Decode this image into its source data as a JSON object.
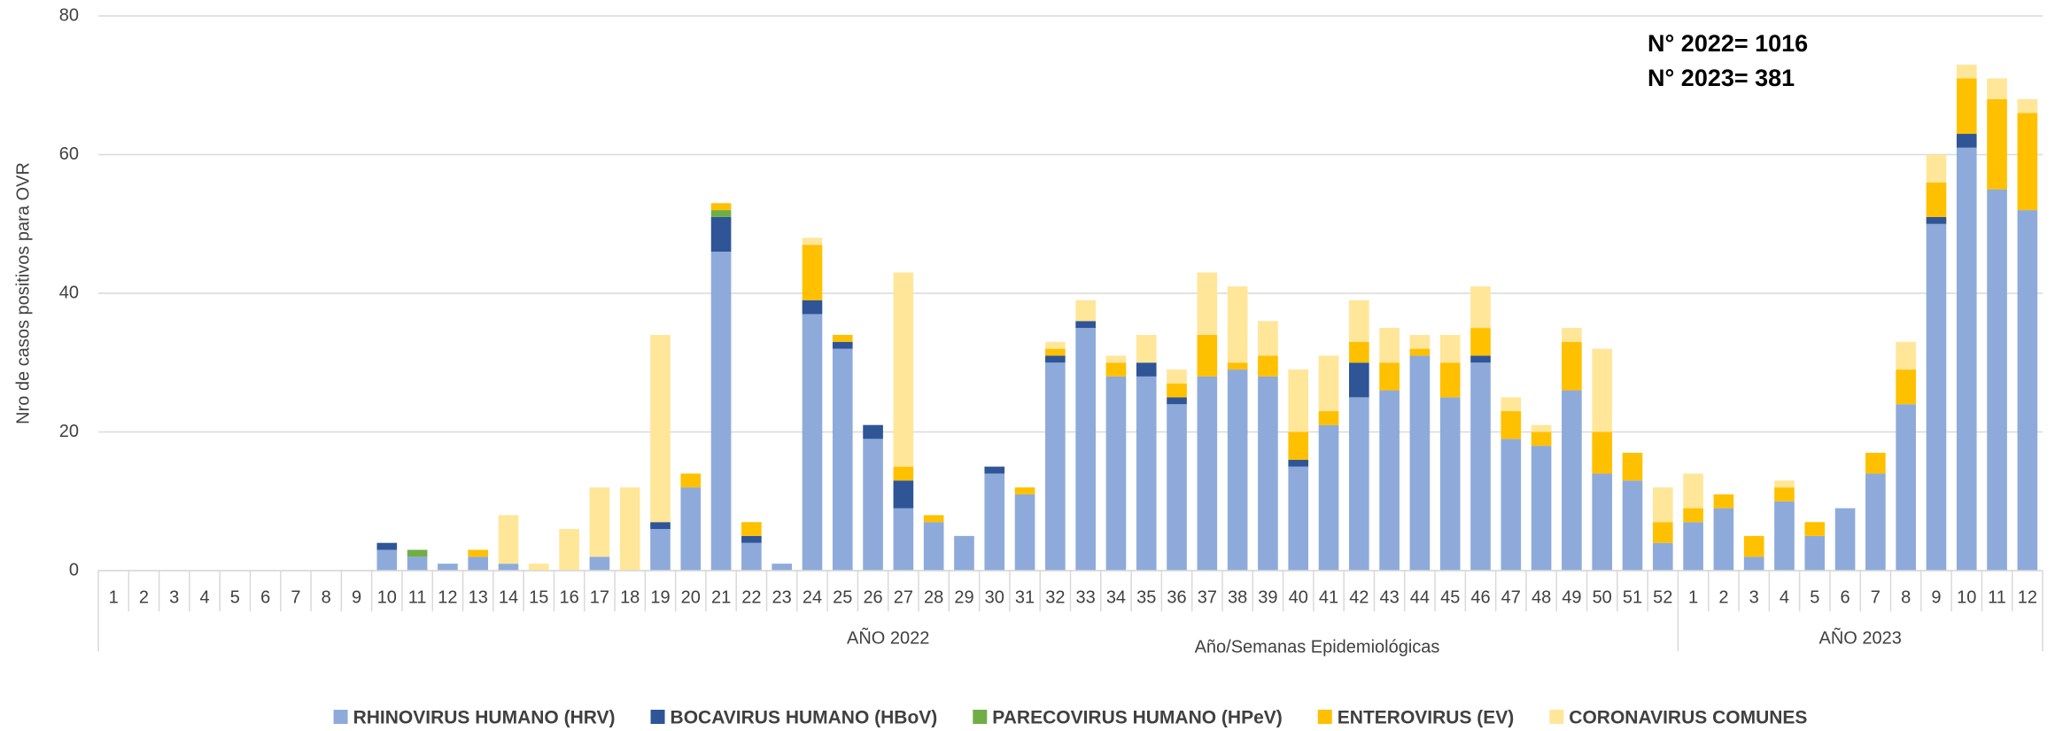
{
  "chart_data": {
    "type": "stacked_bar",
    "y_label": "Nro de casos positivos para OVR",
    "x_label": "Año/Semanas Epidemiológicas",
    "x_groups": [
      "AÑO 2022",
      "AÑO 2023"
    ],
    "annotations": [
      "N° 2022= 1016",
      "N° 2023= 381"
    ],
    "categories": [
      "1",
      "2",
      "3",
      "4",
      "5",
      "6",
      "7",
      "8",
      "9",
      "10",
      "11",
      "12",
      "13",
      "14",
      "15",
      "16",
      "17",
      "18",
      "19",
      "20",
      "21",
      "22",
      "23",
      "24",
      "25",
      "26",
      "27",
      "28",
      "29",
      "30",
      "31",
      "32",
      "33",
      "34",
      "35",
      "36",
      "37",
      "38",
      "39",
      "40",
      "41",
      "42",
      "43",
      "44",
      "45",
      "46",
      "47",
      "48",
      "49",
      "50",
      "51",
      "52",
      "1",
      "2",
      "3",
      "4",
      "5",
      "6",
      "7",
      "8",
      "9",
      "10",
      "11",
      "12"
    ],
    "series": [
      {
        "name": "RHINOVIRUS HUMANO (HRV)",
        "color": "#8eaadb",
        "values": [
          0,
          0,
          0,
          0,
          0,
          0,
          0,
          0,
          0,
          3,
          2,
          1,
          2,
          1,
          0,
          0,
          2,
          0,
          6,
          12,
          46,
          4,
          1,
          37,
          32,
          19,
          9,
          7,
          5,
          14,
          11,
          30,
          35,
          28,
          28,
          24,
          28,
          29,
          28,
          15,
          21,
          25,
          26,
          31,
          25,
          30,
          19,
          18,
          26,
          14,
          13,
          4,
          7,
          9,
          2,
          10,
          5,
          9,
          14,
          24,
          50,
          61,
          55,
          52
        ]
      },
      {
        "name": "BOCAVIRUS HUMANO (HBoV)",
        "color": "#2f5597",
        "values": [
          0,
          0,
          0,
          0,
          0,
          0,
          0,
          0,
          0,
          1,
          0,
          0,
          0,
          0,
          0,
          0,
          0,
          0,
          1,
          0,
          5,
          1,
          0,
          2,
          1,
          2,
          4,
          0,
          0,
          1,
          0,
          1,
          1,
          0,
          2,
          1,
          0,
          0,
          0,
          1,
          0,
          5,
          0,
          0,
          0,
          1,
          0,
          0,
          0,
          0,
          0,
          0,
          0,
          0,
          0,
          0,
          0,
          0,
          0,
          0,
          1,
          2,
          0,
          0
        ]
      },
      {
        "name": "PARECOVIRUS HUMANO (HPeV)",
        "color": "#70ad47",
        "values": [
          0,
          0,
          0,
          0,
          0,
          0,
          0,
          0,
          0,
          0,
          1,
          0,
          0,
          0,
          0,
          0,
          0,
          0,
          0,
          0,
          1,
          0,
          0,
          0,
          0,
          0,
          0,
          0,
          0,
          0,
          0,
          0,
          0,
          0,
          0,
          0,
          0,
          0,
          0,
          0,
          0,
          0,
          0,
          0,
          0,
          0,
          0,
          0,
          0,
          0,
          0,
          0,
          0,
          0,
          0,
          0,
          0,
          0,
          0,
          0,
          0,
          0,
          0,
          0
        ]
      },
      {
        "name": "ENTEROVIRUS (EV)",
        "color": "#ffc000",
        "values": [
          0,
          0,
          0,
          0,
          0,
          0,
          0,
          0,
          0,
          0,
          0,
          0,
          1,
          0,
          0,
          0,
          0,
          0,
          0,
          2,
          1,
          2,
          0,
          8,
          1,
          0,
          2,
          1,
          0,
          0,
          1,
          1,
          0,
          2,
          0,
          2,
          6,
          1,
          3,
          4,
          2,
          3,
          4,
          1,
          5,
          4,
          4,
          2,
          7,
          6,
          4,
          3,
          2,
          2,
          3,
          2,
          2,
          0,
          3,
          5,
          5,
          8,
          13,
          14
        ]
      },
      {
        "name": "CORONAVIRUS COMUNES",
        "color": "#ffe699",
        "values": [
          0,
          0,
          0,
          0,
          0,
          0,
          0,
          0,
          0,
          0,
          0,
          0,
          0,
          7,
          1,
          6,
          10,
          12,
          27,
          0,
          0,
          0,
          0,
          1,
          0,
          0,
          28,
          0,
          0,
          0,
          0,
          1,
          3,
          1,
          4,
          2,
          9,
          11,
          5,
          9,
          8,
          6,
          5,
          2,
          4,
          6,
          2,
          1,
          2,
          12,
          0,
          5,
          5,
          0,
          0,
          1,
          0,
          0,
          0,
          4,
          4,
          2,
          3,
          2
        ]
      }
    ],
    "ylim": [
      0,
      80
    ],
    "yticks": [
      0,
      20,
      40,
      60,
      80
    ],
    "grid": true,
    "legend": "bottom"
  }
}
